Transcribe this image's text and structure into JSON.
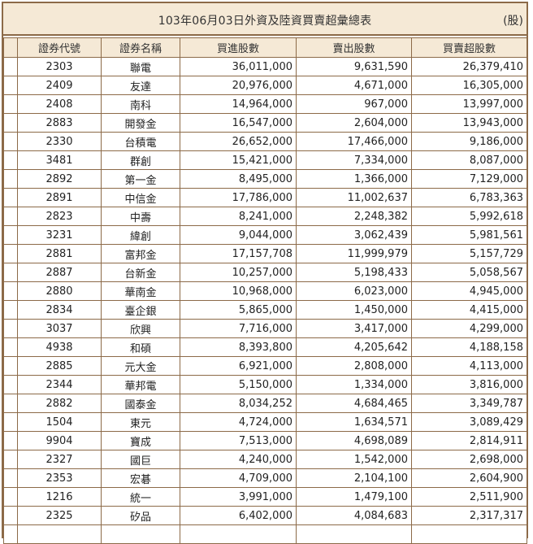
{
  "report": {
    "title": "103年06月03日外資及陸資買賣超彙總表",
    "unit": "(股)"
  },
  "columns": [
    "證券代號",
    "證券名稱",
    "買進股數",
    "賣出股數",
    "買賣超股數"
  ],
  "rows": [
    [
      "2303",
      "聯電",
      "36,011,000",
      "9,631,590",
      "26,379,410"
    ],
    [
      "2409",
      "友達",
      "20,976,000",
      "4,671,000",
      "16,305,000"
    ],
    [
      "2408",
      "南科",
      "14,964,000",
      "967,000",
      "13,997,000"
    ],
    [
      "2883",
      "開發金",
      "16,547,000",
      "2,604,000",
      "13,943,000"
    ],
    [
      "2330",
      "台積電",
      "26,652,000",
      "17,466,000",
      "9,186,000"
    ],
    [
      "3481",
      "群創",
      "15,421,000",
      "7,334,000",
      "8,087,000"
    ],
    [
      "2892",
      "第一金",
      "8,495,000",
      "1,366,000",
      "7,129,000"
    ],
    [
      "2891",
      "中信金",
      "17,786,000",
      "11,002,637",
      "6,783,363"
    ],
    [
      "2823",
      "中壽",
      "8,241,000",
      "2,248,382",
      "5,992,618"
    ],
    [
      "3231",
      "緯創",
      "9,044,000",
      "3,062,439",
      "5,981,561"
    ],
    [
      "2881",
      "富邦金",
      "17,157,708",
      "11,999,979",
      "5,157,729"
    ],
    [
      "2887",
      "台新金",
      "10,257,000",
      "5,198,433",
      "5,058,567"
    ],
    [
      "2880",
      "華南金",
      "10,968,000",
      "6,023,000",
      "4,945,000"
    ],
    [
      "2834",
      "臺企銀",
      "5,865,000",
      "1,450,000",
      "4,415,000"
    ],
    [
      "3037",
      "欣興",
      "7,716,000",
      "3,417,000",
      "4,299,000"
    ],
    [
      "4938",
      "和碩",
      "8,393,800",
      "4,205,642",
      "4,188,158"
    ],
    [
      "2885",
      "元大金",
      "6,921,000",
      "2,808,000",
      "4,113,000"
    ],
    [
      "2344",
      "華邦電",
      "5,150,000",
      "1,334,000",
      "3,816,000"
    ],
    [
      "2882",
      "國泰金",
      "8,034,252",
      "4,684,465",
      "3,349,787"
    ],
    [
      "1504",
      "東元",
      "4,724,000",
      "1,634,571",
      "3,089,429"
    ],
    [
      "9904",
      "寶成",
      "7,513,000",
      "4,698,089",
      "2,814,911"
    ],
    [
      "2327",
      "國巨",
      "4,240,000",
      "1,542,000",
      "2,698,000"
    ],
    [
      "2353",
      "宏碁",
      "4,709,000",
      "2,104,100",
      "2,604,900"
    ],
    [
      "1216",
      "統一",
      "3,991,000",
      "1,479,100",
      "2,511,900"
    ],
    [
      "2325",
      "矽品",
      "6,402,000",
      "4,084,683",
      "2,317,317"
    ],
    [
      "",
      "",
      "",
      "",
      ""
    ]
  ],
  "colors": {
    "header_bg": "#f5e9d6",
    "border": "#8c6a48"
  }
}
